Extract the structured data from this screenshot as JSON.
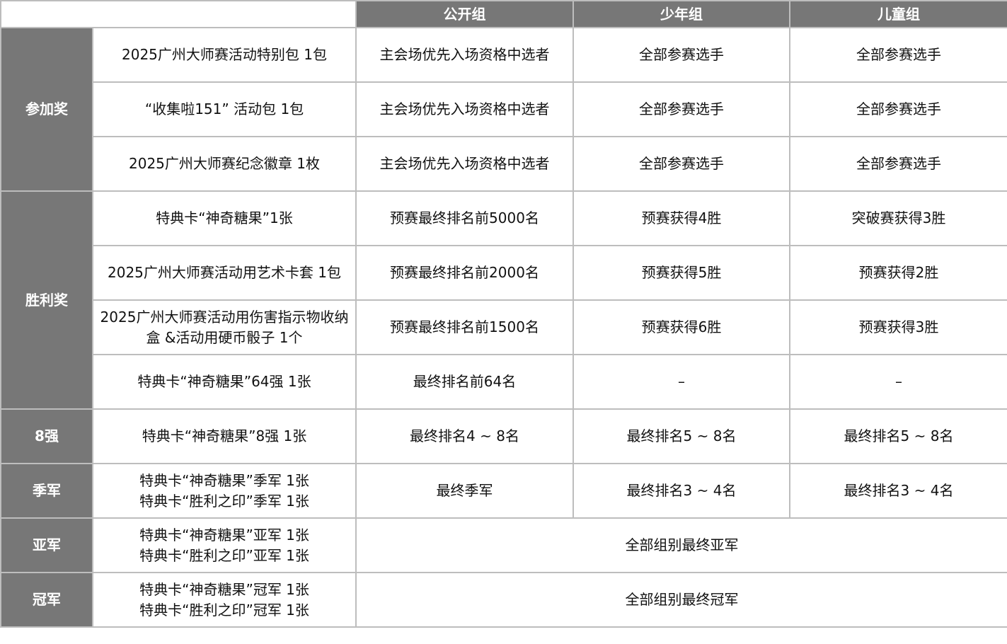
{
  "header": {
    "columns": [
      "公开组",
      "少年组",
      "儿童组"
    ]
  },
  "groups": [
    {
      "label": "参加奖",
      "rows": [
        {
          "prize": "2025广州大师赛活动特别包 1包",
          "cells": [
            "主会场优先入场资格中选者",
            "全部参赛选手",
            "全部参赛选手"
          ]
        },
        {
          "prize": "“收集啦151” 活动包 1包",
          "cells": [
            "主会场优先入场资格中选者",
            "全部参赛选手",
            "全部参赛选手"
          ]
        },
        {
          "prize": "2025广州大师赛纪念徽章 1枚",
          "cells": [
            "主会场优先入场资格中选者",
            "全部参赛选手",
            "全部参赛选手"
          ]
        }
      ]
    },
    {
      "label": "胜利奖",
      "rows": [
        {
          "prize": "特典卡“神奇糖果”1张",
          "cells": [
            "预赛最终排名前5000名",
            "预赛获得4胜",
            "突破赛获得3胜"
          ]
        },
        {
          "prize": "2025广州大师赛活动用艺术卡套 1包",
          "cells": [
            "预赛最终排名前2000名",
            "预赛获得5胜",
            "预赛获得2胜"
          ]
        },
        {
          "prize": "2025广州大师赛活动用伤害指示物收纳盒 &活动用硬币骰子 1个",
          "cells": [
            "预赛最终排名前1500名",
            "预赛获得6胜",
            "预赛获得3胜"
          ]
        },
        {
          "prize": "特典卡“神奇糖果”64强 1张",
          "cells": [
            "最终排名前64名",
            "–",
            "–"
          ]
        }
      ]
    },
    {
      "label": "8强",
      "rows": [
        {
          "prize": "特典卡“神奇糖果”8强 1张",
          "cells": [
            "最终排名4 ~ 8名",
            "最终排名5 ~ 8名",
            "最终排名5 ~ 8名"
          ]
        }
      ]
    },
    {
      "label": "季军",
      "rows": [
        {
          "prize": "特典卡“神奇糖果”季军 1张\n特典卡“胜利之印”季军 1张",
          "cells": [
            "最终季军",
            "最终排名3 ~ 4名",
            "最终排名3 ~ 4名"
          ]
        }
      ]
    },
    {
      "label": "亚军",
      "rows": [
        {
          "prize": "特典卡“神奇糖果”亚军 1张\n特典卡“胜利之印”亚军 1张",
          "merged": "全部组别最终亚军"
        }
      ]
    },
    {
      "label": "冠军",
      "rows": [
        {
          "prize": "特典卡“神奇糖果”冠军 1张\n特典卡“胜利之印”冠军 1张",
          "merged": "全部组别最终冠军"
        }
      ]
    }
  ]
}
